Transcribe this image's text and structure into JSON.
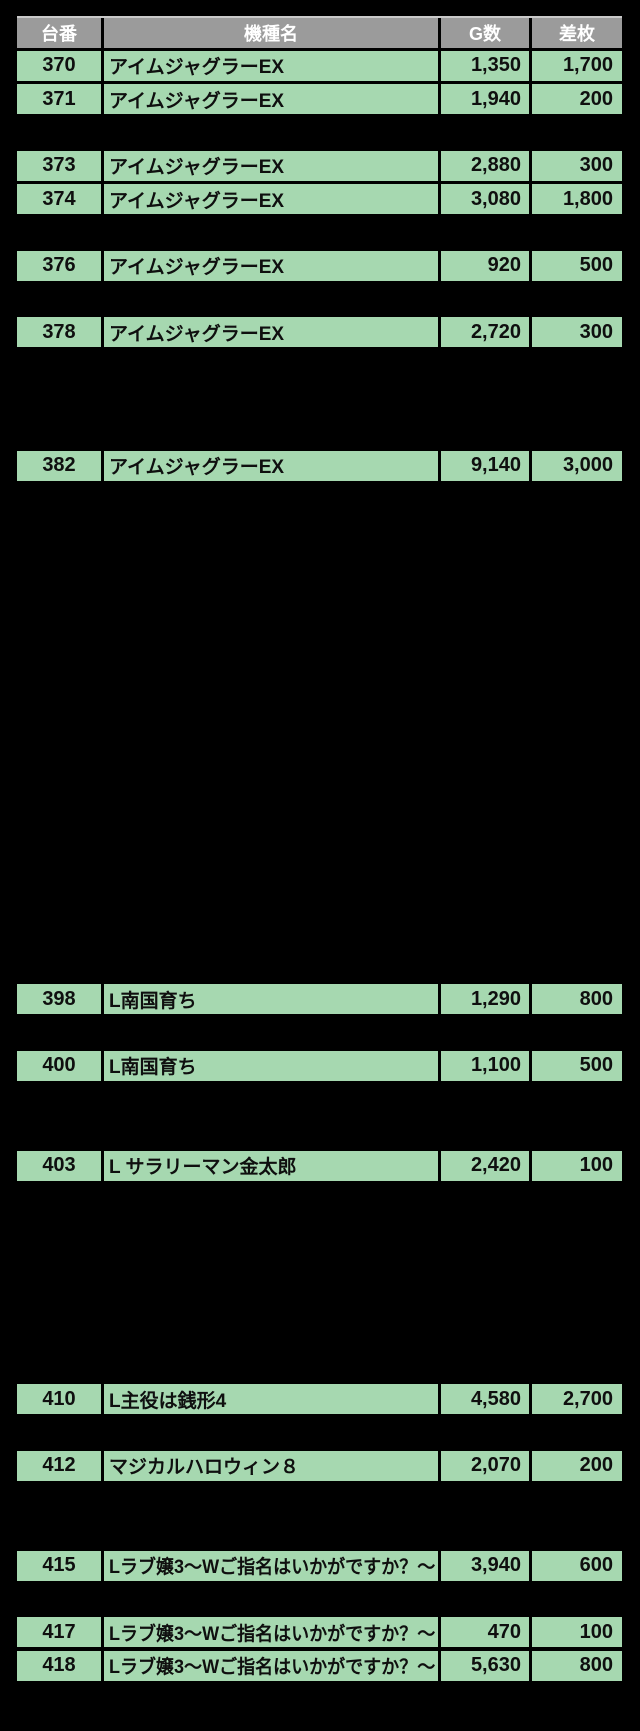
{
  "colors": {
    "bg": "#000000",
    "row_green": "#a6d8b0",
    "header_gray": "#9b9b9b",
    "header_text": "#ffffff",
    "cell_text": "#0f0f0f",
    "header_top_border": "#c9c9c9"
  },
  "table": {
    "columns": [
      "台番",
      "機種名",
      "G数",
      "差枚"
    ],
    "base_machine_no": 370,
    "rows": [
      {
        "no": 370,
        "name": "アイムジャグラーEX",
        "g": "1,350",
        "diff": "1,700"
      },
      {
        "no": 371,
        "name": "アイムジャグラーEX",
        "g": "1,940",
        "diff": "200"
      },
      {
        "no": 373,
        "name": "アイムジャグラーEX",
        "g": "2,880",
        "diff": "300"
      },
      {
        "no": 374,
        "name": "アイムジャグラーEX",
        "g": "3,080",
        "diff": "1,800"
      },
      {
        "no": 376,
        "name": "アイムジャグラーEX",
        "g": "920",
        "diff": "500"
      },
      {
        "no": 378,
        "name": "アイムジャグラーEX",
        "g": "2,720",
        "diff": "300"
      },
      {
        "no": 382,
        "name": "アイムジャグラーEX",
        "g": "9,140",
        "diff": "3,000"
      },
      {
        "no": 398,
        "name": "L南国育ち",
        "g": "1,290",
        "diff": "800"
      },
      {
        "no": 400,
        "name": "L南国育ち",
        "g": "1,100",
        "diff": "500"
      },
      {
        "no": 403,
        "name": "L サラリーマン金太郎",
        "g": "2,420",
        "diff": "100"
      },
      {
        "no": 410,
        "name": "L主役は銭形4",
        "g": "4,580",
        "diff": "2,700"
      },
      {
        "no": 412,
        "name": "マジカルハロウィン８",
        "g": "2,070",
        "diff": "200"
      },
      {
        "no": 415,
        "name": "Lラブ嬢3〜Wご指名はいかがですか？〜",
        "g": "3,940",
        "diff": "600"
      },
      {
        "no": 417,
        "name": "Lラブ嬢3〜Wご指名はいかがですか？〜",
        "g": "470",
        "diff": "100"
      },
      {
        "no": 418,
        "name": "Lラブ嬢3〜Wご指名はいかがですか？〜",
        "g": "5,630",
        "diff": "800"
      }
    ]
  }
}
